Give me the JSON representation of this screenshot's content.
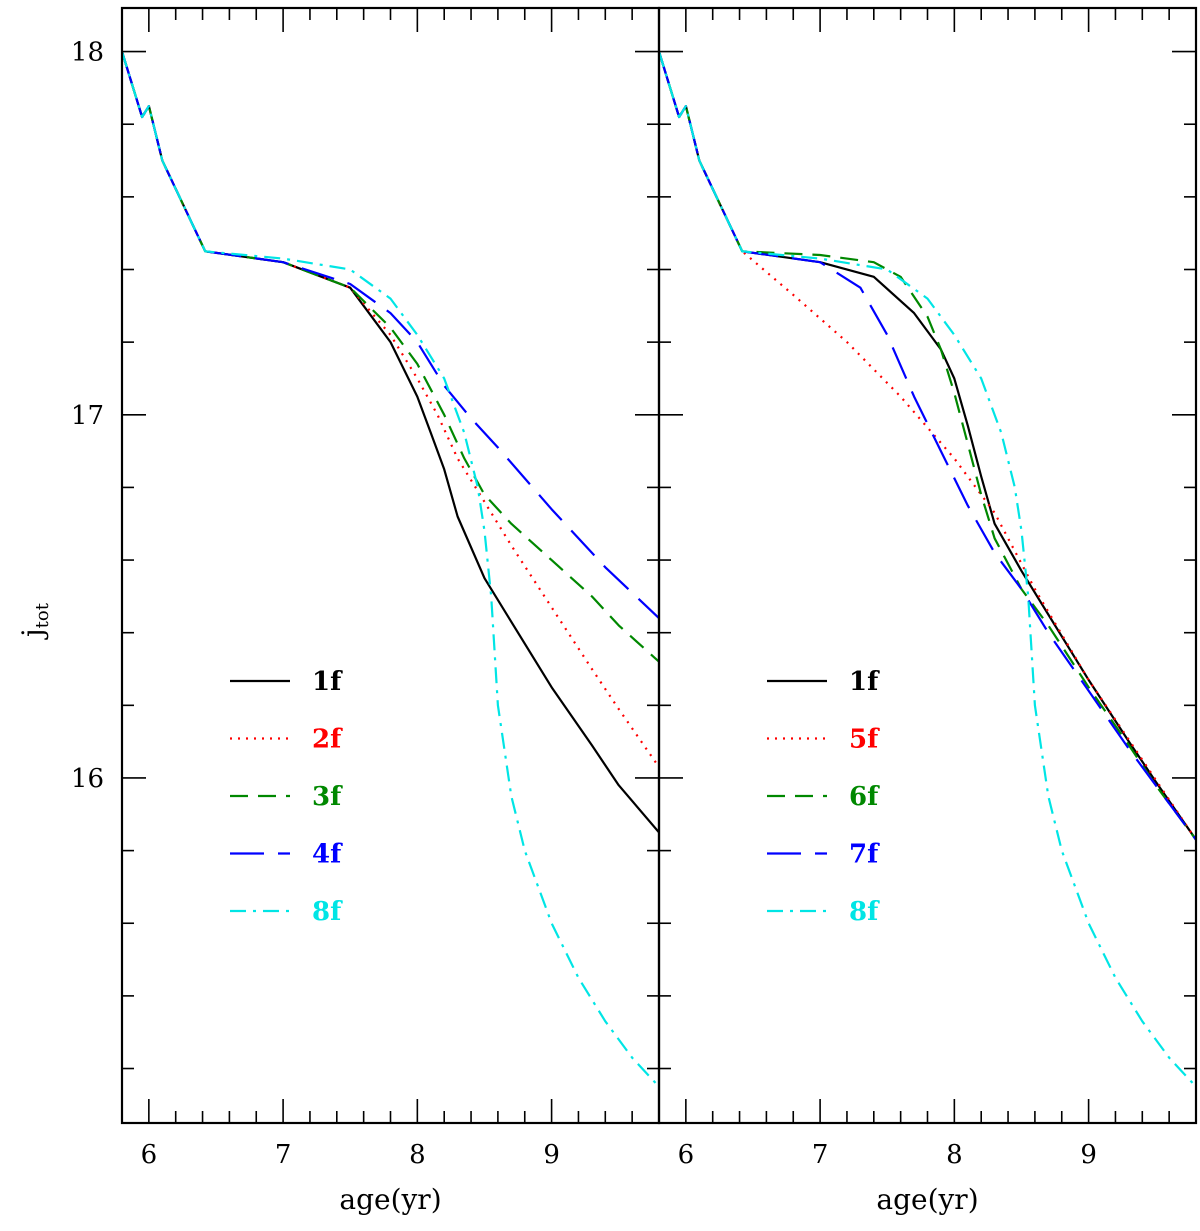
{
  "figure": {
    "ylabel_main": "j",
    "ylabel_sub": "tot"
  },
  "chart_data": [
    {
      "type": "line",
      "panel": "left",
      "xlabel": "age(yr)",
      "ylabel": "j_tot",
      "xlim": [
        5.8,
        9.8
      ],
      "ylim": [
        15.05,
        18.12
      ],
      "x_ticks": [
        6,
        7,
        8,
        9
      ],
      "y_ticks": [
        16,
        17,
        18
      ],
      "x_tick_labels": [
        "6",
        "7",
        "8",
        "9"
      ],
      "y_tick_labels": [
        "16",
        "17",
        "18"
      ],
      "grid": false,
      "legend_placement": "lower-left",
      "series": [
        {
          "name": "1f",
          "color": "#000000",
          "dash": "solid",
          "x": [
            5.8,
            5.95,
            6.0,
            6.1,
            6.42,
            7.0,
            7.5,
            7.8,
            8.0,
            8.1,
            8.2,
            8.3,
            8.5,
            8.7,
            9.0,
            9.3,
            9.5,
            9.8
          ],
          "y": [
            18.0,
            17.82,
            17.85,
            17.7,
            17.45,
            17.42,
            17.35,
            17.2,
            17.05,
            16.95,
            16.85,
            16.72,
            16.55,
            16.43,
            16.25,
            16.09,
            15.98,
            15.85
          ]
        },
        {
          "name": "2f",
          "color": "#ff0000",
          "dash": "dot",
          "x": [
            5.8,
            5.95,
            6.0,
            6.1,
            6.42,
            7.0,
            7.5,
            7.8,
            8.0,
            8.15,
            8.3,
            8.5,
            8.7,
            9.0,
            9.3,
            9.5,
            9.8
          ],
          "y": [
            18.0,
            17.82,
            17.85,
            17.7,
            17.45,
            17.42,
            17.35,
            17.22,
            17.1,
            17.0,
            16.88,
            16.76,
            16.64,
            16.47,
            16.3,
            16.19,
            16.03
          ]
        },
        {
          "name": "3f",
          "color": "#008800",
          "dash": "dash",
          "x": [
            5.8,
            5.95,
            6.0,
            6.1,
            6.42,
            7.0,
            7.5,
            7.8,
            8.0,
            8.2,
            8.35,
            8.5,
            8.7,
            9.0,
            9.3,
            9.5,
            9.8
          ],
          "y": [
            18.0,
            17.82,
            17.85,
            17.7,
            17.45,
            17.42,
            17.35,
            17.24,
            17.14,
            17.0,
            16.88,
            16.78,
            16.7,
            16.6,
            16.5,
            16.42,
            16.32
          ]
        },
        {
          "name": "4f",
          "color": "#0000ff",
          "dash": "longdash",
          "x": [
            5.8,
            5.95,
            6.0,
            6.1,
            6.42,
            7.0,
            7.5,
            7.8,
            8.0,
            8.2,
            8.4,
            8.6,
            9.0,
            9.4,
            9.8
          ],
          "y": [
            18.0,
            17.82,
            17.85,
            17.7,
            17.45,
            17.42,
            17.36,
            17.28,
            17.2,
            17.08,
            16.99,
            16.91,
            16.74,
            16.58,
            16.44
          ]
        },
        {
          "name": "8f",
          "color": "#00e5e5",
          "dash": "dashdot",
          "x": [
            5.8,
            5.95,
            6.0,
            6.1,
            6.42,
            7.0,
            7.5,
            7.8,
            8.0,
            8.2,
            8.35,
            8.45,
            8.5,
            8.55,
            8.6,
            8.7,
            8.8,
            9.0,
            9.2,
            9.4,
            9.6,
            9.8
          ],
          "y": [
            18.0,
            17.82,
            17.85,
            17.7,
            17.45,
            17.43,
            17.4,
            17.32,
            17.22,
            17.1,
            16.95,
            16.8,
            16.68,
            16.5,
            16.2,
            15.95,
            15.8,
            15.6,
            15.45,
            15.33,
            15.23,
            15.15
          ]
        }
      ]
    },
    {
      "type": "line",
      "panel": "right",
      "xlabel": "age(yr)",
      "ylabel": "",
      "xlim": [
        5.8,
        9.8
      ],
      "ylim": [
        15.05,
        18.12
      ],
      "x_ticks": [
        6,
        7,
        8,
        9
      ],
      "x_tick_labels": [
        "6",
        "7",
        "8",
        "9"
      ],
      "grid": false,
      "legend_placement": "lower-left",
      "series": [
        {
          "name": "1f",
          "color": "#000000",
          "dash": "solid",
          "x": [
            5.8,
            5.95,
            6.0,
            6.1,
            6.42,
            7.0,
            7.4,
            7.7,
            7.9,
            8.0,
            8.1,
            8.2,
            8.3,
            8.5,
            8.7,
            9.0,
            9.3,
            9.5,
            9.8
          ],
          "y": [
            18.0,
            17.82,
            17.85,
            17.7,
            17.45,
            17.42,
            17.38,
            17.28,
            17.18,
            17.1,
            16.97,
            16.83,
            16.7,
            16.57,
            16.45,
            16.27,
            16.1,
            15.99,
            15.83
          ]
        },
        {
          "name": "5f",
          "color": "#ff0000",
          "dash": "dot",
          "x": [
            5.8,
            5.95,
            6.0,
            6.1,
            6.42,
            6.8,
            7.2,
            7.6,
            8.0,
            8.3,
            8.6,
            9.0,
            9.4,
            9.8
          ],
          "y": [
            18.0,
            17.82,
            17.85,
            17.7,
            17.45,
            17.33,
            17.2,
            17.05,
            16.88,
            16.73,
            16.52,
            16.27,
            16.05,
            15.83
          ]
        },
        {
          "name": "6f",
          "color": "#008800",
          "dash": "dash",
          "x": [
            5.8,
            5.95,
            6.0,
            6.1,
            6.42,
            7.0,
            7.4,
            7.6,
            7.8,
            7.9,
            8.0,
            8.1,
            8.2,
            8.3,
            8.5,
            8.7,
            9.0,
            9.3,
            9.5,
            9.8
          ],
          "y": [
            18.0,
            17.82,
            17.85,
            17.7,
            17.45,
            17.44,
            17.42,
            17.38,
            17.27,
            17.18,
            17.06,
            16.92,
            16.78,
            16.66,
            16.52,
            16.42,
            16.25,
            16.09,
            15.98,
            15.83
          ]
        },
        {
          "name": "7f",
          "color": "#0000ff",
          "dash": "longdash",
          "x": [
            5.8,
            5.95,
            6.0,
            6.1,
            6.42,
            7.0,
            7.3,
            7.5,
            7.7,
            7.9,
            8.1,
            8.3,
            8.5,
            8.7,
            9.0,
            9.3,
            9.5,
            9.8
          ],
          "y": [
            18.0,
            17.82,
            17.85,
            17.7,
            17.45,
            17.42,
            17.35,
            17.22,
            17.05,
            16.9,
            16.75,
            16.62,
            16.52,
            16.4,
            16.24,
            16.08,
            15.98,
            15.83
          ]
        },
        {
          "name": "8f",
          "color": "#00e5e5",
          "dash": "dashdot",
          "x": [
            5.8,
            5.95,
            6.0,
            6.1,
            6.42,
            7.0,
            7.5,
            7.8,
            8.0,
            8.2,
            8.35,
            8.45,
            8.5,
            8.55,
            8.6,
            8.7,
            8.8,
            9.0,
            9.2,
            9.4,
            9.6,
            9.8
          ],
          "y": [
            18.0,
            17.82,
            17.85,
            17.7,
            17.45,
            17.43,
            17.4,
            17.32,
            17.22,
            17.1,
            16.95,
            16.8,
            16.68,
            16.5,
            16.2,
            15.95,
            15.8,
            15.6,
            15.45,
            15.33,
            15.23,
            15.15
          ]
        }
      ]
    }
  ]
}
